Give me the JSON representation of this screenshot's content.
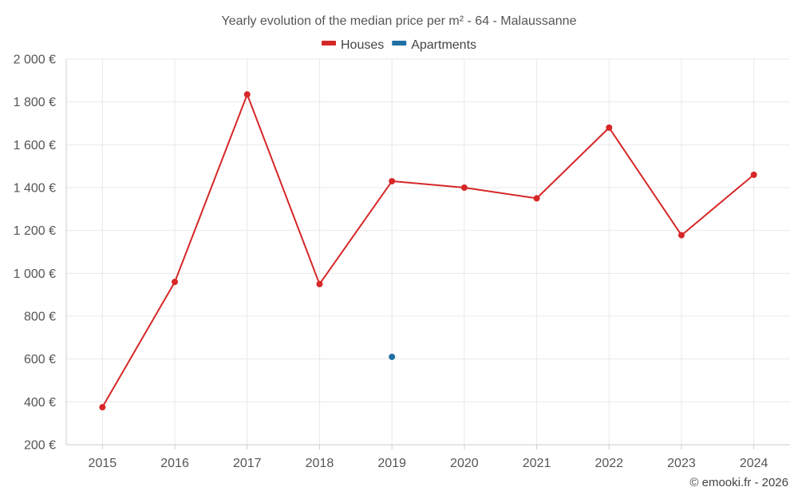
{
  "chart_data": {
    "type": "line",
    "title": "Yearly evolution of the median price per m² - 64 - Malaussanne",
    "xlabel": "",
    "ylabel": "",
    "categories": [
      "2015",
      "2016",
      "2017",
      "2018",
      "2019",
      "2020",
      "2021",
      "2022",
      "2023",
      "2024"
    ],
    "ylim": [
      200,
      2000
    ],
    "yticks": [
      200,
      400,
      600,
      800,
      1000,
      1200,
      1400,
      1600,
      1800,
      2000
    ],
    "ytick_labels": [
      "200 €",
      "400 €",
      "600 €",
      "800 €",
      "1 000 €",
      "1 200 €",
      "1 400 €",
      "1 600 €",
      "1 800 €",
      "2 000 €"
    ],
    "grid": true,
    "legend_position": "top-center",
    "series": [
      {
        "name": "Houses",
        "color": "#d62728",
        "values": [
          375,
          960,
          1835,
          950,
          1430,
          1400,
          1350,
          1680,
          1178,
          1460
        ]
      },
      {
        "name": "Apartments",
        "color": "#1f6fa3",
        "values": [
          null,
          null,
          null,
          null,
          610,
          null,
          null,
          null,
          null,
          null
        ]
      }
    ]
  },
  "credit": "© emooki.fr - 2026"
}
